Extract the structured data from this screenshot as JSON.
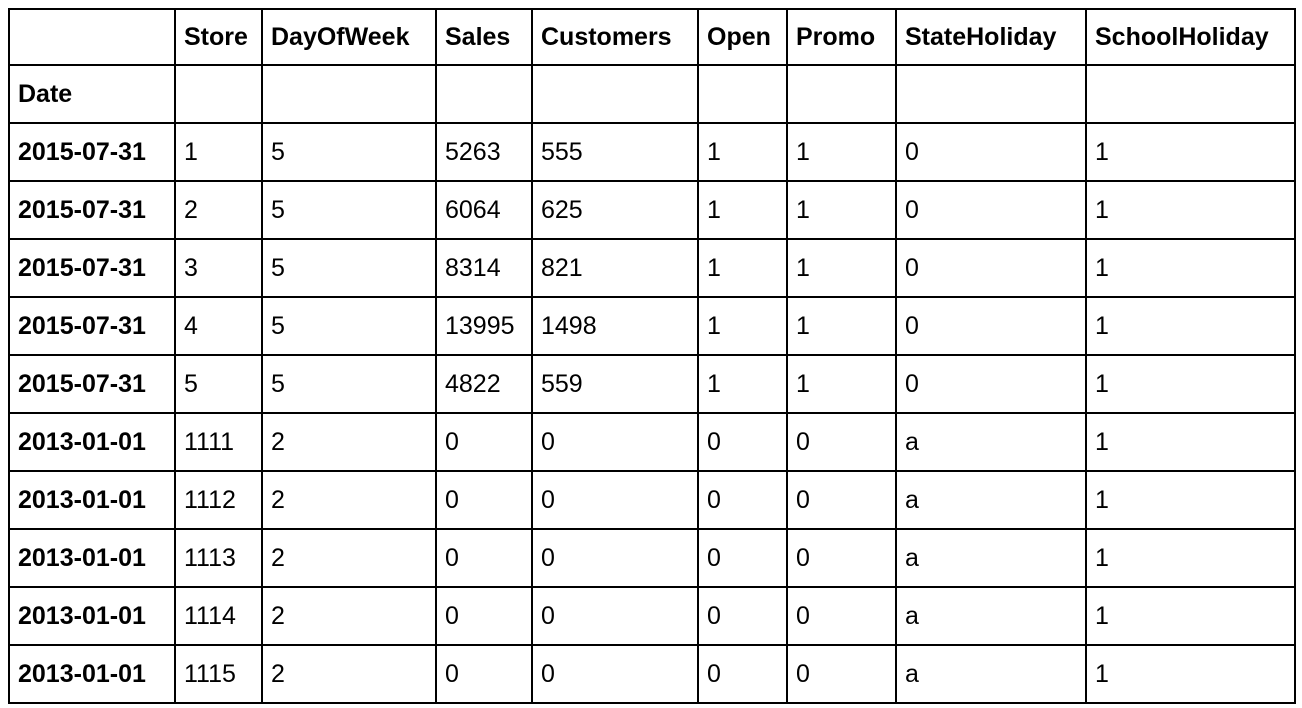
{
  "table": {
    "columns": [
      "Store",
      "DayOfWeek",
      "Sales",
      "Customers",
      "Open",
      "Promo",
      "StateHoliday",
      "SchoolHoliday"
    ],
    "index_name": "Date",
    "rows": [
      {
        "index": "2015-07-31",
        "cells": [
          "1",
          "5",
          "5263",
          "555",
          "1",
          "1",
          "0",
          "1"
        ]
      },
      {
        "index": "2015-07-31",
        "cells": [
          "2",
          "5",
          "6064",
          "625",
          "1",
          "1",
          "0",
          "1"
        ]
      },
      {
        "index": "2015-07-31",
        "cells": [
          "3",
          "5",
          "8314",
          "821",
          "1",
          "1",
          "0",
          "1"
        ]
      },
      {
        "index": "2015-07-31",
        "cells": [
          "4",
          "5",
          "13995",
          "1498",
          "1",
          "1",
          "0",
          "1"
        ]
      },
      {
        "index": "2015-07-31",
        "cells": [
          "5",
          "5",
          "4822",
          "559",
          "1",
          "1",
          "0",
          "1"
        ]
      },
      {
        "index": "2013-01-01",
        "cells": [
          "1111",
          "2",
          "0",
          "0",
          "0",
          "0",
          "a",
          "1"
        ]
      },
      {
        "index": "2013-01-01",
        "cells": [
          "1112",
          "2",
          "0",
          "0",
          "0",
          "0",
          "a",
          "1"
        ]
      },
      {
        "index": "2013-01-01",
        "cells": [
          "1113",
          "2",
          "0",
          "0",
          "0",
          "0",
          "a",
          "1"
        ]
      },
      {
        "index": "2013-01-01",
        "cells": [
          "1114",
          "2",
          "0",
          "0",
          "0",
          "0",
          "a",
          "1"
        ]
      },
      {
        "index": "2013-01-01",
        "cells": [
          "1115",
          "2",
          "0",
          "0",
          "0",
          "0",
          "a",
          "1"
        ]
      }
    ]
  }
}
